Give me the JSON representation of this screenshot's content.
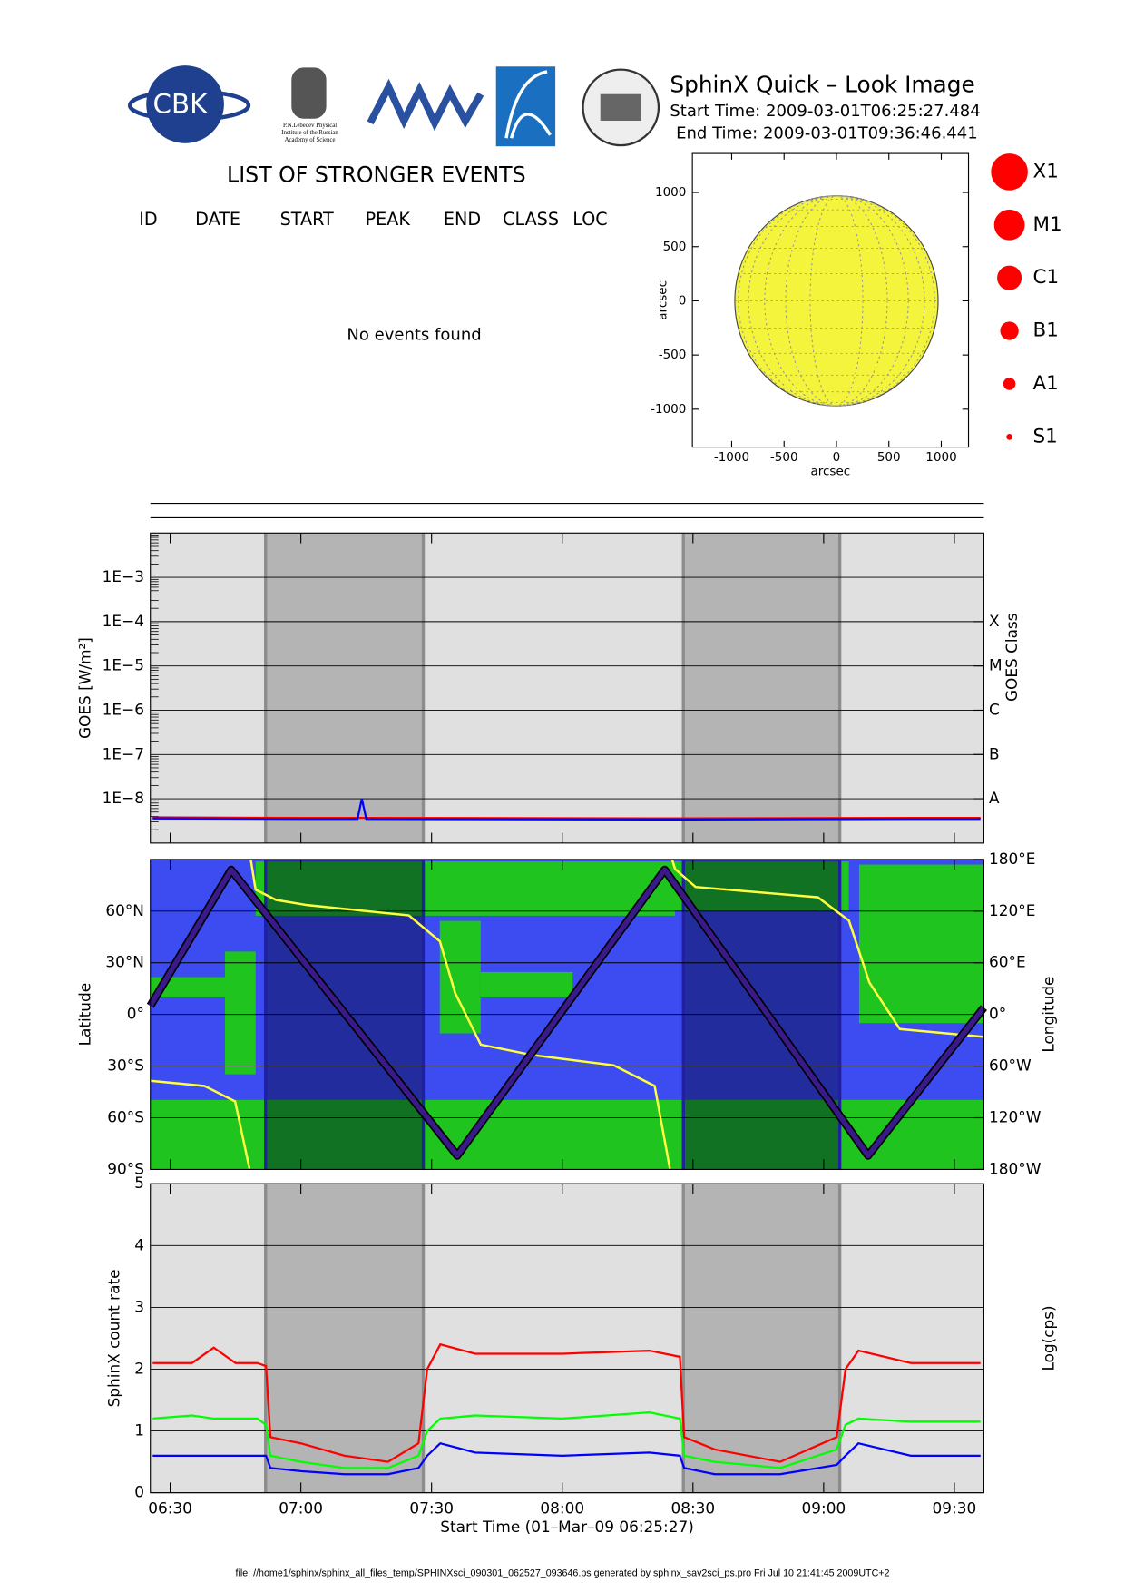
{
  "header": {
    "title": "SphinX Quick – Look Image",
    "start_time": "Start Time: 2009-03-01T06:25:27.484",
    "end_time": "End Time: 2009-03-01T09:36:46.441",
    "logo_text": "CBK",
    "lebedev": [
      "P.N.Lebedev Physical",
      "Institute of the Russian",
      "Academy of Science"
    ]
  },
  "events": {
    "title": "LIST OF STRONGER EVENTS",
    "columns": [
      "ID",
      "DATE",
      "START",
      "PEAK",
      "END",
      "CLASS",
      "LOC"
    ],
    "message": "No events found"
  },
  "size_legend": [
    "X1",
    "M1",
    "C1",
    "B1",
    "A1",
    "S1"
  ],
  "footer": "file: //home1/sphinx/sphinx_all_files_temp/SPHINXsci_090301_062527_093646.ps generated by sphinx_sav2sci_ps.pro Fri Jul 10 21:41:45 2009UTC+2",
  "chart_data": [
    {
      "type": "disk",
      "xlabel": "arcsec",
      "ylabel": "arcsec",
      "xlim": [
        -1375,
        1260
      ],
      "ylim": [
        -1350,
        1360
      ],
      "xticks": [
        -1000,
        -500,
        0,
        500,
        1000
      ],
      "yticks": [
        -1000,
        -500,
        0,
        500,
        1000
      ],
      "radius": 970,
      "color": "#f4f43c",
      "grid": true
    },
    {
      "type": "line",
      "ylabel": "GOES [W/m²]",
      "y2label": "GOES Class",
      "log": true,
      "ylim": [
        1e-09,
        0.01
      ],
      "yticks": [
        {
          "value": 1e-08,
          "label": "1E−8"
        },
        {
          "value": 1e-07,
          "label": "1E−7"
        },
        {
          "value": 1e-06,
          "label": "1E−6"
        },
        {
          "value": 1e-05,
          "label": "1E−5"
        },
        {
          "value": 0.0001,
          "label": "1E−4"
        },
        {
          "value": 0.001,
          "label": "1E−3"
        }
      ],
      "y2lim": [
        1e-09,
        0.01
      ],
      "y2ticks": [
        {
          "value": 1e-08,
          "label": "A"
        },
        {
          "value": 1e-07,
          "label": "B"
        },
        {
          "value": 1e-06,
          "label": "C"
        },
        {
          "value": 1e-05,
          "label": "M"
        },
        {
          "value": 0.0001,
          "label": "X"
        }
      ],
      "x": [
        386,
        420,
        433,
        434,
        435,
        500,
        560,
        576
      ],
      "series": [
        {
          "color": "#ff0000",
          "values": [
            3.8e-09,
            3.7e-09,
            3.7e-09,
            3.7e-09,
            3.7e-09,
            3.6e-09,
            3.7e-09,
            3.7e-09
          ]
        },
        {
          "color": "#0000ff",
          "values": [
            3.6e-09,
            3.5e-09,
            3.5e-09,
            1e-08,
            3.5e-09,
            3.4e-09,
            3.5e-09,
            3.5e-09
          ]
        }
      ],
      "shaded": [
        [
          411.9,
          448.1
        ],
        [
          507.8,
          543.7
        ]
      ]
    },
    {
      "type": "track",
      "ylabel": "Latitude",
      "y2label": "Longitude",
      "ylim": [
        -90,
        90
      ],
      "yticks": [
        {
          "value": -90,
          "label": "90°S"
        },
        {
          "value": -60,
          "label": "60°S"
        },
        {
          "value": -30,
          "label": "30°S"
        },
        {
          "value": 0,
          "label": "0°"
        },
        {
          "value": 30,
          "label": "30°N"
        },
        {
          "value": 60,
          "label": "60°N"
        }
      ],
      "y2lim": [
        -180,
        180
      ],
      "y2ticks": [
        {
          "value": -180,
          "label": "180°W"
        },
        {
          "value": -120,
          "label": "120°W"
        },
        {
          "value": -60,
          "label": "60°W"
        },
        {
          "value": 0,
          "label": "0°"
        },
        {
          "value": 60,
          "label": "60°E"
        },
        {
          "value": 120,
          "label": "120°E"
        },
        {
          "value": 180,
          "label": "180°E"
        }
      ],
      "series": [
        {
          "color": "#3a1a8a",
          "x": [
            385.45,
            404.0,
            455.9,
            503.5,
            550.2,
            576.77
          ],
          "values": [
            5,
            84,
            -82,
            84,
            -82,
            4
          ]
        },
        {
          "color": "#ffff40",
          "axis": "y2",
          "x": [
            385.45,
            397.9,
            404.9,
            408.2,
            408.3,
            408.5,
            409.6,
            414.3,
            421.4,
            444.8,
            451.9,
            455.4,
            461.3,
            473.0,
            491.8,
            501.2,
            504.7,
            505.0,
            505.2,
            505.9,
            510.6,
            538.7,
            545.8,
            550.5,
            557.5,
            576.77
          ],
          "values": [
            -77,
            -83,
            -101,
            -179,
            null,
            180,
            145,
            133,
            127,
            115,
            85,
            25,
            -35,
            -47,
            -59,
            -83,
            -179,
            null,
            180,
            169,
            148,
            136,
            109,
            37,
            -17,
            -26
          ]
        }
      ],
      "shaded": [
        [
          411.9,
          448.1
        ],
        [
          507.8,
          543.7
        ]
      ]
    },
    {
      "type": "line",
      "xlabel": "Start Time (01–Mar–09 06:25:27)",
      "ylabel": "SphinX count rate",
      "y2label": "Log(cps)",
      "xlim": [
        385.45,
        576.77
      ],
      "xticks": [
        {
          "value": 390,
          "label": "06:30"
        },
        {
          "value": 420,
          "label": "07:00"
        },
        {
          "value": 450,
          "label": "07:30"
        },
        {
          "value": 480,
          "label": "08:00"
        },
        {
          "value": 510,
          "label": "08:30"
        },
        {
          "value": 540,
          "label": "09:00"
        },
        {
          "value": 570,
          "label": "09:30"
        }
      ],
      "ylim": [
        0,
        5
      ],
      "yticks": [
        0,
        1,
        2,
        3,
        4,
        5
      ],
      "x": [
        386,
        395,
        400,
        405,
        410,
        412,
        413,
        420,
        430,
        440,
        447,
        449,
        452,
        460,
        480,
        500,
        507,
        508,
        515,
        530,
        543,
        545,
        548,
        560,
        576
      ],
      "series": [
        {
          "color": "#00ff00",
          "values": [
            1.2,
            1.25,
            1.2,
            1.2,
            1.2,
            1.1,
            0.6,
            0.5,
            0.4,
            0.4,
            0.6,
            1.0,
            1.2,
            1.25,
            1.2,
            1.3,
            1.2,
            0.6,
            0.5,
            0.4,
            0.7,
            1.1,
            1.2,
            1.15,
            1.15
          ]
        },
        {
          "color": "#0000ff",
          "values": [
            0.6,
            0.6,
            0.6,
            0.6,
            0.6,
            0.6,
            0.4,
            0.35,
            0.3,
            0.3,
            0.4,
            0.6,
            0.8,
            0.65,
            0.6,
            0.65,
            0.6,
            0.4,
            0.3,
            0.3,
            0.45,
            0.6,
            0.8,
            0.6,
            0.6
          ]
        },
        {
          "color": "#ff0000",
          "values": [
            2.1,
            2.1,
            2.35,
            2.1,
            2.1,
            2.05,
            0.9,
            0.8,
            0.6,
            0.5,
            0.8,
            2.0,
            2.4,
            2.25,
            2.25,
            2.3,
            2.2,
            0.9,
            0.7,
            0.5,
            0.9,
            2.0,
            2.3,
            2.1,
            2.1
          ]
        }
      ],
      "shaded": [
        [
          411.9,
          448.1
        ],
        [
          507.8,
          543.7
        ]
      ]
    }
  ]
}
